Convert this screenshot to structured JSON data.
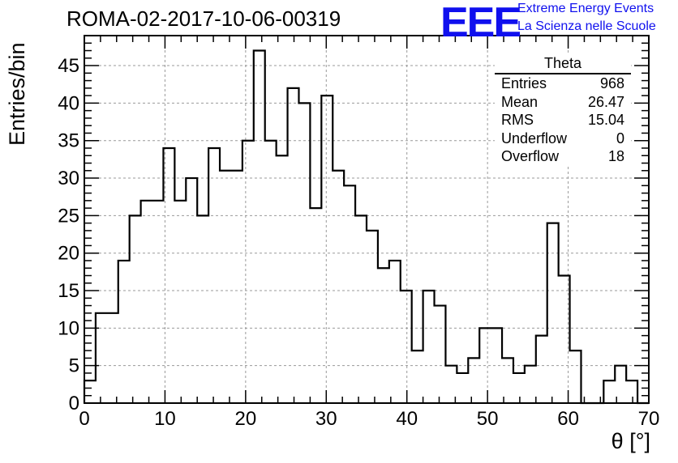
{
  "header": {
    "title": "ROMA-02-2017-10-06-00319",
    "logo_text": "EEE",
    "logo_line1": "Extreme Energy Events",
    "logo_line2": "La Scienza nelle Scuole"
  },
  "stats_box": {
    "title": "Theta",
    "rows": [
      {
        "label": "Entries",
        "value": "968"
      },
      {
        "label": "Mean",
        "value": "26.47"
      },
      {
        "label": "RMS",
        "value": "15.04"
      },
      {
        "label": "Underflow",
        "value": "0"
      },
      {
        "label": "Overflow",
        "value": "18"
      }
    ]
  },
  "chart_data": {
    "type": "bar",
    "style": "step-histogram",
    "xlabel": "θ [°]",
    "ylabel": "Entries/bin",
    "xlim": [
      0,
      70
    ],
    "ylim": [
      0,
      49
    ],
    "grid": true,
    "x_ticks": [
      0,
      10,
      20,
      30,
      40,
      50,
      60,
      70
    ],
    "y_ticks": [
      0,
      5,
      10,
      15,
      20,
      25,
      30,
      35,
      40,
      45
    ],
    "bin_width": 1.4,
    "bin_edges_start": 0,
    "values": [
      3,
      12,
      12,
      19,
      25,
      27,
      27,
      34,
      27,
      30,
      25,
      34,
      31,
      31,
      35,
      47,
      35,
      33,
      42,
      40,
      26,
      41,
      31,
      29,
      25,
      23,
      18,
      19,
      15,
      7,
      15,
      13,
      5,
      4,
      6,
      10,
      10,
      6,
      4,
      5,
      9,
      24,
      17,
      7,
      0,
      0,
      3,
      5,
      3,
      0
    ]
  }
}
